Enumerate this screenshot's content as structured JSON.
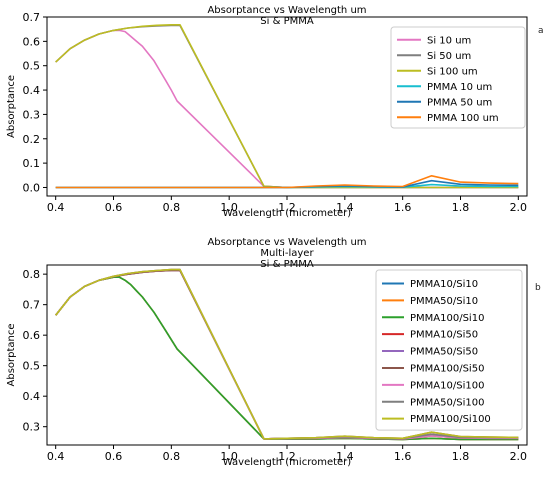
{
  "chart_data": [
    {
      "panel": "a",
      "type": "line",
      "title_lines": [
        "Absorptance vs Wavelength um",
        "Si & PMMA"
      ],
      "xlabel": "Wavelength (micrometer)",
      "ylabel": "Absorptance",
      "xlim": [
        0.37,
        2.03
      ],
      "ylim": [
        -0.035,
        0.7
      ],
      "xticks": [
        0.4,
        0.6,
        0.8,
        1.0,
        1.2,
        1.4,
        1.6,
        1.8,
        2.0
      ],
      "yticks": [
        0.0,
        0.1,
        0.2,
        0.3,
        0.4,
        0.5,
        0.6,
        0.7
      ],
      "x_tick_labels": [
        "0.4",
        "0.6",
        "0.8",
        "1.0",
        "1.2",
        "1.4",
        "1.6",
        "1.8",
        "2.0"
      ],
      "y_tick_labels": [
        "0.0",
        "0.1",
        "0.2",
        "0.3",
        "0.4",
        "0.5",
        "0.6",
        "0.7"
      ],
      "legend_position": "top-right",
      "series": [
        {
          "name": "Si 10 um",
          "color": "#e377c2",
          "x": [
            0.4,
            0.45,
            0.5,
            0.55,
            0.6,
            0.62,
            0.64,
            0.66,
            0.68,
            0.7,
            0.72,
            0.74,
            0.76,
            0.78,
            0.8,
            0.82,
            1.12,
            1.2,
            1.3,
            1.4,
            1.5,
            1.6,
            1.7,
            1.8,
            1.9,
            2.0
          ],
          "y": [
            0.515,
            0.57,
            0.605,
            0.63,
            0.645,
            0.645,
            0.64,
            0.62,
            0.6,
            0.58,
            0.55,
            0.52,
            0.48,
            0.44,
            0.4,
            0.355,
            0.005,
            0.0,
            0.0,
            0.0,
            0.0,
            0.0,
            0.0,
            0.0,
            0.0,
            0.0
          ]
        },
        {
          "name": "Si 50 um",
          "color": "#7f7f7f",
          "x": [
            0.4,
            0.45,
            0.5,
            0.55,
            0.6,
            0.65,
            0.7,
            0.75,
            0.8,
            0.83,
            1.12,
            1.2,
            1.3,
            1.4,
            1.5,
            1.6,
            1.7,
            1.8,
            1.9,
            2.0
          ],
          "y": [
            0.515,
            0.57,
            0.605,
            0.63,
            0.645,
            0.655,
            0.66,
            0.663,
            0.665,
            0.665,
            0.005,
            0.0,
            0.0,
            0.0,
            0.0,
            0.0,
            0.0,
            0.0,
            0.0,
            0.0
          ]
        },
        {
          "name": "Si 100 um",
          "color": "#bcbd22",
          "x": [
            0.4,
            0.45,
            0.5,
            0.55,
            0.6,
            0.65,
            0.7,
            0.75,
            0.8,
            0.83,
            1.12,
            1.2,
            1.3,
            1.4,
            1.5,
            1.6,
            1.7,
            1.8,
            1.9,
            2.0
          ],
          "y": [
            0.515,
            0.57,
            0.605,
            0.63,
            0.645,
            0.655,
            0.662,
            0.666,
            0.668,
            0.668,
            0.005,
            0.0,
            0.0,
            0.0,
            0.0,
            0.0,
            0.0,
            0.0,
            0.0,
            0.0
          ]
        },
        {
          "name": "PMMA 10 um",
          "color": "#17becf",
          "x": [
            0.4,
            0.6,
            0.8,
            1.0,
            1.12,
            1.2,
            1.3,
            1.4,
            1.5,
            1.6,
            1.7,
            1.8,
            1.9,
            2.0
          ],
          "y": [
            0.0,
            0.0,
            0.0,
            0.0,
            0.0,
            0.0,
            0.002,
            0.004,
            0.002,
            0.001,
            0.012,
            0.006,
            0.004,
            0.004
          ]
        },
        {
          "name": "PMMA 50 um",
          "color": "#1f77b4",
          "x": [
            0.4,
            0.6,
            0.8,
            1.0,
            1.12,
            1.2,
            1.3,
            1.4,
            1.5,
            1.6,
            1.7,
            1.8,
            1.9,
            2.0
          ],
          "y": [
            0.0,
            0.0,
            0.0,
            0.0,
            0.0,
            0.0,
            0.004,
            0.007,
            0.004,
            0.002,
            0.028,
            0.013,
            0.01,
            0.009
          ]
        },
        {
          "name": "PMMA 100 um",
          "color": "#ff7f0e",
          "x": [
            0.4,
            0.6,
            0.8,
            1.0,
            1.12,
            1.2,
            1.3,
            1.4,
            1.5,
            1.6,
            1.7,
            1.8,
            1.9,
            2.0
          ],
          "y": [
            0.0,
            0.0,
            0.0,
            0.0,
            0.0,
            0.0,
            0.006,
            0.01,
            0.006,
            0.004,
            0.048,
            0.022,
            0.018,
            0.016
          ]
        }
      ]
    },
    {
      "panel": "b",
      "type": "line",
      "title_lines": [
        "Absorptance vs Wavelength um",
        "Multi-layer",
        "Si & PMMA"
      ],
      "xlabel": "Wavelength (micrometer)",
      "ylabel": "Absorptance",
      "xlim": [
        0.37,
        2.03
      ],
      "ylim": [
        0.24,
        0.83
      ],
      "xticks": [
        0.4,
        0.6,
        0.8,
        1.0,
        1.2,
        1.4,
        1.6,
        1.8,
        2.0
      ],
      "yticks": [
        0.3,
        0.4,
        0.5,
        0.6,
        0.7,
        0.8
      ],
      "x_tick_labels": [
        "0.4",
        "0.6",
        "0.8",
        "1.0",
        "1.2",
        "1.4",
        "1.6",
        "1.8",
        "2.0"
      ],
      "y_tick_labels": [
        "0.3",
        "0.4",
        "0.5",
        "0.6",
        "0.7",
        "0.8"
      ],
      "legend_position": "right",
      "series": [
        {
          "name": "PMMA10/Si10",
          "color": "#1f77b4",
          "x": [
            0.4,
            0.45,
            0.5,
            0.55,
            0.6,
            0.62,
            0.64,
            0.66,
            0.68,
            0.7,
            0.72,
            0.74,
            0.76,
            0.78,
            0.8,
            0.82,
            1.12,
            1.2,
            1.3,
            1.4,
            1.5,
            1.6,
            1.7,
            1.8,
            1.9,
            2.0
          ],
          "y": [
            0.665,
            0.725,
            0.76,
            0.78,
            0.79,
            0.79,
            0.78,
            0.765,
            0.745,
            0.725,
            0.7,
            0.675,
            0.645,
            0.615,
            0.585,
            0.555,
            0.26,
            0.26,
            0.26,
            0.262,
            0.26,
            0.258,
            0.262,
            0.258,
            0.258,
            0.258
          ]
        },
        {
          "name": "PMMA50/Si10",
          "color": "#ff7f0e",
          "x": [
            0.4,
            0.45,
            0.5,
            0.55,
            0.6,
            0.62,
            0.64,
            0.66,
            0.68,
            0.7,
            0.72,
            0.74,
            0.76,
            0.78,
            0.8,
            0.82,
            1.12,
            1.2,
            1.3,
            1.4,
            1.5,
            1.6,
            1.7,
            1.8,
            1.9,
            2.0
          ],
          "y": [
            0.665,
            0.725,
            0.76,
            0.78,
            0.79,
            0.79,
            0.78,
            0.765,
            0.745,
            0.725,
            0.7,
            0.675,
            0.645,
            0.615,
            0.585,
            0.555,
            0.26,
            0.26,
            0.26,
            0.262,
            0.26,
            0.258,
            0.262,
            0.258,
            0.258,
            0.258
          ]
        },
        {
          "name": "PMMA100/Si10",
          "color": "#2ca02c",
          "x": [
            0.4,
            0.45,
            0.5,
            0.55,
            0.6,
            0.62,
            0.64,
            0.66,
            0.68,
            0.7,
            0.72,
            0.74,
            0.76,
            0.78,
            0.8,
            0.82,
            1.12,
            1.2,
            1.3,
            1.4,
            1.5,
            1.6,
            1.7,
            1.8,
            1.9,
            2.0
          ],
          "y": [
            0.665,
            0.725,
            0.76,
            0.78,
            0.79,
            0.79,
            0.78,
            0.765,
            0.745,
            0.725,
            0.7,
            0.675,
            0.645,
            0.615,
            0.585,
            0.555,
            0.26,
            0.26,
            0.26,
            0.262,
            0.26,
            0.258,
            0.262,
            0.258,
            0.258,
            0.258
          ]
        },
        {
          "name": "PMMA10/Si50",
          "color": "#d62728",
          "x": [
            0.4,
            0.45,
            0.5,
            0.55,
            0.6,
            0.65,
            0.7,
            0.75,
            0.8,
            0.83,
            1.12,
            1.2,
            1.3,
            1.4,
            1.5,
            1.6,
            1.7,
            1.8,
            1.9,
            2.0
          ],
          "y": [
            0.665,
            0.725,
            0.76,
            0.78,
            0.792,
            0.8,
            0.806,
            0.81,
            0.812,
            0.812,
            0.26,
            0.262,
            0.262,
            0.265,
            0.262,
            0.26,
            0.27,
            0.263,
            0.262,
            0.262
          ]
        },
        {
          "name": "PMMA50/Si50",
          "color": "#9467bd",
          "x": [
            0.4,
            0.45,
            0.5,
            0.55,
            0.6,
            0.65,
            0.7,
            0.75,
            0.8,
            0.83,
            1.12,
            1.2,
            1.3,
            1.4,
            1.5,
            1.6,
            1.7,
            1.8,
            1.9,
            2.0
          ],
          "y": [
            0.665,
            0.725,
            0.76,
            0.78,
            0.792,
            0.8,
            0.806,
            0.81,
            0.812,
            0.812,
            0.26,
            0.262,
            0.263,
            0.267,
            0.263,
            0.261,
            0.275,
            0.265,
            0.264,
            0.264
          ]
        },
        {
          "name": "PMMA100/Si50",
          "color": "#8c564b",
          "x": [
            0.4,
            0.45,
            0.5,
            0.55,
            0.6,
            0.65,
            0.7,
            0.75,
            0.8,
            0.83,
            1.12,
            1.2,
            1.3,
            1.4,
            1.5,
            1.6,
            1.7,
            1.8,
            1.9,
            2.0
          ],
          "y": [
            0.665,
            0.725,
            0.76,
            0.78,
            0.792,
            0.8,
            0.806,
            0.81,
            0.812,
            0.812,
            0.26,
            0.262,
            0.264,
            0.269,
            0.264,
            0.262,
            0.282,
            0.268,
            0.266,
            0.265
          ]
        },
        {
          "name": "PMMA10/Si100",
          "color": "#e377c2",
          "x": [
            0.4,
            0.45,
            0.5,
            0.55,
            0.6,
            0.65,
            0.7,
            0.75,
            0.8,
            0.83,
            1.12,
            1.2,
            1.3,
            1.4,
            1.5,
            1.6,
            1.7,
            1.8,
            1.9,
            2.0
          ],
          "y": [
            0.665,
            0.725,
            0.76,
            0.78,
            0.793,
            0.802,
            0.808,
            0.812,
            0.815,
            0.815,
            0.26,
            0.262,
            0.262,
            0.265,
            0.262,
            0.26,
            0.27,
            0.263,
            0.262,
            0.262
          ]
        },
        {
          "name": "PMMA50/Si100",
          "color": "#7f7f7f",
          "x": [
            0.4,
            0.45,
            0.5,
            0.55,
            0.6,
            0.65,
            0.7,
            0.75,
            0.8,
            0.83,
            1.12,
            1.2,
            1.3,
            1.4,
            1.5,
            1.6,
            1.7,
            1.8,
            1.9,
            2.0
          ],
          "y": [
            0.665,
            0.725,
            0.76,
            0.78,
            0.793,
            0.802,
            0.808,
            0.812,
            0.815,
            0.815,
            0.26,
            0.262,
            0.263,
            0.267,
            0.263,
            0.261,
            0.275,
            0.265,
            0.264,
            0.264
          ]
        },
        {
          "name": "PMMA100/Si100",
          "color": "#bcbd22",
          "x": [
            0.4,
            0.45,
            0.5,
            0.55,
            0.6,
            0.65,
            0.7,
            0.75,
            0.8,
            0.83,
            1.12,
            1.2,
            1.3,
            1.4,
            1.5,
            1.6,
            1.7,
            1.8,
            1.9,
            2.0
          ],
          "y": [
            0.665,
            0.725,
            0.76,
            0.78,
            0.793,
            0.802,
            0.808,
            0.812,
            0.815,
            0.815,
            0.26,
            0.262,
            0.264,
            0.269,
            0.264,
            0.262,
            0.282,
            0.268,
            0.266,
            0.265
          ]
        }
      ]
    }
  ]
}
